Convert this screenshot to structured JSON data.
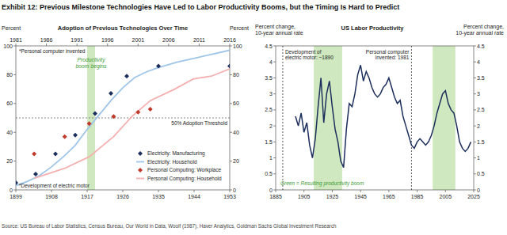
{
  "title": "Exhibit 12: Previous Milestone Technologies Have Led to Labor Productivity Booms, but the Timing Is Hard to Predict",
  "source": "Source: US Bureau of Labor Statistics, Census Bureau, Our World in Data, Woolf (1987), Haver Analytics, Goldman Sachs Global Investment Research",
  "chart_data": [
    {
      "type": "line",
      "title": "Adoption of Previous Technologies Over Time",
      "y_label": "Percent",
      "y2_label": "Percent",
      "xlim": [
        1899,
        1953
      ],
      "xticks": [
        1899,
        1908,
        1917,
        1926,
        1935,
        1944,
        1953
      ],
      "x2lim": [
        1981,
        2016
      ],
      "x2ticks": [
        1981,
        1986,
        1991,
        1996,
        2001,
        2006,
        2011,
        2016
      ],
      "ylim": [
        0,
        100
      ],
      "yticks": [
        0,
        20,
        40,
        60,
        80,
        100
      ],
      "y2lim": [
        0,
        100
      ],
      "y2ticks": [
        0,
        20,
        40,
        60,
        80,
        100
      ],
      "grid": false,
      "legend": "bottom-right",
      "band": {
        "x": [
          1917,
          1919
        ],
        "label": "Productivity boom begins"
      },
      "threshold": {
        "value": 50,
        "label": "50% Adoption Threshold"
      },
      "annotations": [
        "*Personal computer invented",
        "*Development of electric motor"
      ],
      "series": [
        {
          "name": "Electricity: Manufacturing",
          "type": "scatter",
          "marker": "diamond",
          "color": "#1c2e5c",
          "x": [
            1899,
            1904,
            1909,
            1914,
            1919,
            1923,
            1927,
            1935,
            1953
          ],
          "values": [
            5,
            11,
            25,
            38,
            53,
            67,
            79,
            86,
            86
          ]
        },
        {
          "name": "Electricity: Household",
          "type": "line",
          "line_style": "solid",
          "color": "#9fc5e8",
          "x": [
            1899,
            1902,
            1905,
            1908,
            1911,
            1914,
            1917,
            1920,
            1923,
            1926,
            1929,
            1932,
            1935,
            1940,
            1945,
            1953
          ],
          "values": [
            3,
            6,
            10,
            16,
            23,
            31,
            42,
            52,
            62,
            71,
            78,
            82,
            85,
            89,
            92,
            97
          ]
        },
        {
          "name": "Personal Computing: Workplace",
          "type": "scatter",
          "marker": "diamond",
          "color": "#c0392b",
          "axis": "x2",
          "x": [
            1984,
            1989,
            1993,
            1997,
            2001,
            2003
          ],
          "values": [
            25,
            37,
            46,
            51,
            54,
            56
          ]
        },
        {
          "name": "Personal Computing: Household",
          "type": "line",
          "line_style": "solid",
          "color": "#f4b0b0",
          "axis": "x2",
          "x": [
            1984,
            1989,
            1993,
            1997,
            2000,
            2003,
            2007,
            2010,
            2013,
            2016
          ],
          "values": [
            8,
            15,
            23,
            37,
            51,
            62,
            70,
            77,
            79,
            84
          ]
        }
      ]
    },
    {
      "type": "line",
      "title": "US Labor Productivity",
      "y_label": "Percent change, 10-year annual rate",
      "y2_label": "Percent change, 10-year annual rate",
      "xlim": [
        1885,
        2025
      ],
      "xticks": [
        1885,
        1905,
        1925,
        1945,
        1965,
        1985,
        2005,
        2025
      ],
      "ylim": [
        0,
        4.5
      ],
      "yticks": [
        0,
        0.5,
        1,
        1.5,
        2,
        2.5,
        3,
        3.5,
        4,
        4.5
      ],
      "y2lim": [
        0,
        4.5
      ],
      "y2ticks": [
        0,
        0.5,
        1,
        1.5,
        2,
        2.5,
        3,
        3.5,
        4,
        4.5
      ],
      "grid": false,
      "bands": [
        {
          "x": [
            1912,
            1932
          ]
        },
        {
          "x": [
            1996,
            2012
          ]
        }
      ],
      "band_label": "Green = Resulting productivity boom",
      "vlines": [
        {
          "x": 1890,
          "label": "Development of electric motor: ~1890"
        },
        {
          "x": 1981,
          "label": "Personal computer invented: 1981"
        }
      ],
      "x": [
        1899,
        1901,
        1903,
        1905,
        1907,
        1909,
        1911,
        1913,
        1915,
        1917,
        1919,
        1921,
        1923,
        1925,
        1927,
        1929,
        1931,
        1933,
        1935,
        1937,
        1939,
        1941,
        1943,
        1945,
        1947,
        1949,
        1951,
        1953,
        1955,
        1957,
        1959,
        1961,
        1963,
        1965,
        1967,
        1969,
        1971,
        1973,
        1975,
        1977,
        1979,
        1981,
        1983,
        1985,
        1987,
        1989,
        1991,
        1993,
        1995,
        1997,
        1999,
        2001,
        2003,
        2005,
        2007,
        2009,
        2011,
        2013,
        2015,
        2017,
        2019,
        2021,
        2023
      ],
      "series": [
        {
          "color": "#1c2e5c",
          "line_style": "solid",
          "values": [
            2.3,
            2.0,
            2.4,
            1.8,
            2.1,
            1.4,
            1.0,
            1.6,
            2.6,
            3.5,
            2.1,
            3.0,
            3.4,
            2.6,
            1.9,
            1.5,
            0.9,
            0.7,
            1.9,
            2.7,
            2.6,
            3.0,
            3.6,
            3.9,
            3.4,
            3.7,
            3.5,
            3.2,
            3.0,
            2.9,
            3.0,
            3.2,
            3.3,
            3.5,
            3.2,
            2.9,
            2.7,
            2.8,
            2.3,
            2.0,
            1.7,
            1.4,
            1.3,
            1.5,
            1.6,
            1.5,
            1.4,
            1.5,
            1.7,
            2.0,
            2.4,
            2.7,
            3.0,
            3.1,
            2.7,
            2.5,
            2.4,
            2.0,
            1.5,
            1.3,
            1.2,
            1.3,
            1.5
          ]
        }
      ]
    }
  ]
}
